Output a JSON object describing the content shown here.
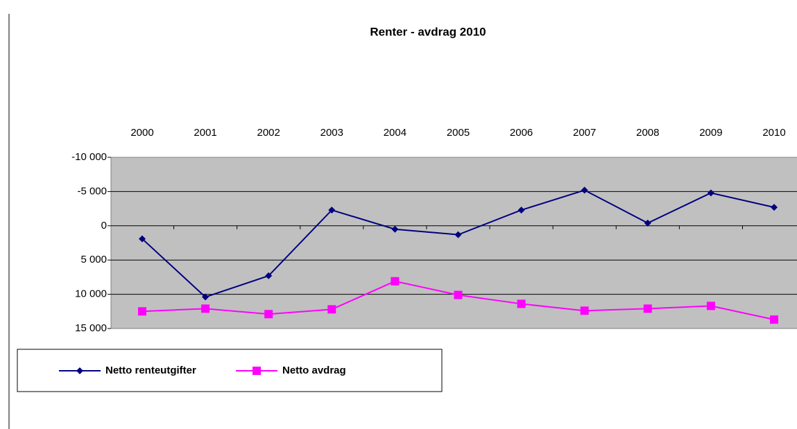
{
  "chart_data": {
    "type": "line",
    "title": "Renter - avdrag 2010",
    "categories": [
      "2000",
      "2001",
      "2002",
      "2003",
      "2004",
      "2005",
      "2006",
      "2007",
      "2008",
      "2009",
      "2010"
    ],
    "series": [
      {
        "name": "Netto renteutgifter",
        "color": "#000080",
        "marker": "diamond",
        "values": [
          1900,
          10400,
          7300,
          -2300,
          500,
          1300,
          -2300,
          -5200,
          -400,
          -4800,
          -2700
        ]
      },
      {
        "name": "Netto avdrag",
        "color": "#ff00ff",
        "marker": "square",
        "values": [
          12500,
          12100,
          12900,
          12200,
          8100,
          10100,
          11400,
          12400,
          12100,
          11700,
          13700
        ]
      }
    ],
    "ylim": [
      -10000,
      15000
    ],
    "y_reversed": true,
    "yticks": [
      {
        "value": -10000,
        "label": "-10 000"
      },
      {
        "value": -5000,
        "label": "-5 000"
      },
      0,
      {
        "value": 5000,
        "label": "5 000"
      },
      {
        "value": 10000,
        "label": "10 000"
      },
      {
        "value": 15000,
        "label": "15 000"
      }
    ],
    "grid": true,
    "plot_background": "#c0c0c0",
    "legend": "bottom-left"
  }
}
